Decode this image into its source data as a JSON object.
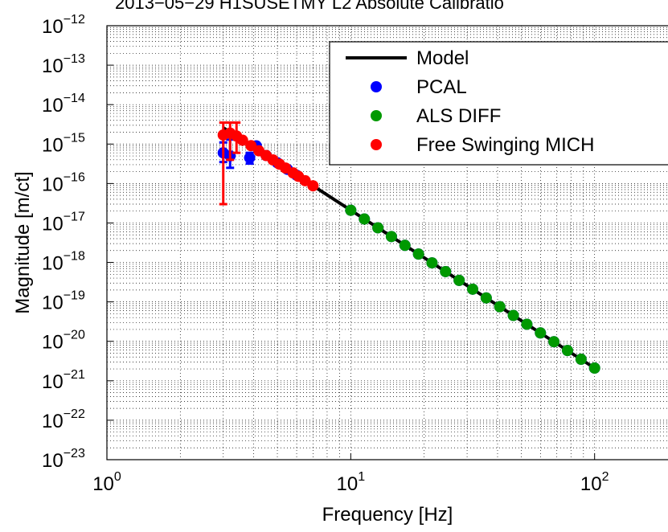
{
  "chart_data": {
    "type": "loglog",
    "title": "2013−05−29 H1SUSETMY L2 Absolute Calibratio",
    "x_label": "Frequency [Hz]",
    "y_label": "Magnitude [m/ct]",
    "xlim": [
      1,
      200
    ],
    "ylim": [
      1e-23,
      1e-12
    ],
    "xscale": "log",
    "yscale": "log",
    "xticks": [
      {
        "value": 1,
        "label": "10^0"
      },
      {
        "value": 10,
        "label": "10^1"
      },
      {
        "value": 100,
        "label": "10^2"
      }
    ],
    "yticks": [
      {
        "value": 1e-23,
        "label": "10^−23"
      },
      {
        "value": 1e-22,
        "label": "10^−22"
      },
      {
        "value": 1e-21,
        "label": "10^−21"
      },
      {
        "value": 1e-20,
        "label": "10^−20"
      },
      {
        "value": 1e-19,
        "label": "10^−19"
      },
      {
        "value": 1e-18,
        "label": "10^−18"
      },
      {
        "value": 1e-17,
        "label": "10^−17"
      },
      {
        "value": 1e-16,
        "label": "10^−16"
      },
      {
        "value": 1e-15,
        "label": "10^−15"
      },
      {
        "value": 1e-14,
        "label": "10^−14"
      },
      {
        "value": 1e-13,
        "label": "10^−13"
      },
      {
        "value": 1e-12,
        "label": "10^−12"
      }
    ],
    "grid": true,
    "minor_grid": true,
    "legend": "northeast",
    "series": [
      {
        "name": "Model",
        "color": "#000000",
        "style": "line",
        "x": [
          3,
          100
        ],
        "values": [
          2.6e-15,
          2.1e-21
        ]
      },
      {
        "name": "PCAL",
        "color": "#0000ff",
        "style": "marker",
        "x": [
          3.0,
          3.2,
          3.85,
          4.1,
          4.5,
          5,
          5.5,
          6,
          10,
          11.37,
          12.92,
          14.68,
          16.68,
          18.96,
          21.54,
          24.48,
          27.83,
          31.62,
          35.94,
          40.84,
          46.42,
          52.75,
          59.95,
          68.13,
          77.43,
          88.0,
          100
        ],
        "values": [
          6e-16,
          5e-16,
          4.5e-16,
          9e-16,
          5.12e-16,
          3.36e-16,
          2.29e-16,
          1.62e-16,
          2.1e-17,
          1.26e-17,
          7.55e-18,
          4.53e-18,
          2.71e-18,
          1.63e-18,
          9.75e-19,
          5.85e-19,
          3.51e-19,
          2.1e-19,
          1.26e-19,
          7.55e-20,
          4.53e-20,
          2.71e-20,
          1.63e-20,
          9.75e-21,
          5.85e-21,
          3.51e-21,
          2.1e-21
        ],
        "lower": [
          3.5e-16,
          2.5e-16,
          3.2e-16,
          null,
          null,
          null,
          null,
          null,
          null,
          null,
          null,
          null,
          null,
          null,
          null,
          null,
          null,
          null,
          null,
          null,
          null,
          null,
          null,
          null,
          null,
          null,
          null
        ],
        "upper": [
          1.1e-15,
          1.3e-15,
          6e-16,
          null,
          null,
          null,
          null,
          null,
          null,
          null,
          null,
          null,
          null,
          null,
          null,
          null,
          null,
          null,
          null,
          null,
          null,
          null,
          null,
          null,
          null,
          null,
          null
        ]
      },
      {
        "name": "ALS DIFF",
        "color": "#009900",
        "style": "marker",
        "x": [
          10,
          11.37,
          12.92,
          14.68,
          16.68,
          18.96,
          21.54,
          24.48,
          27.83,
          31.62,
          35.94,
          40.84,
          46.42,
          52.75,
          59.95,
          68.13,
          77.43,
          88.0,
          100
        ],
        "values": [
          2.1e-17,
          1.26e-17,
          7.55e-18,
          4.53e-18,
          2.71e-18,
          1.63e-18,
          9.75e-19,
          5.85e-19,
          3.51e-19,
          2.1e-19,
          1.26e-19,
          7.55e-20,
          4.53e-20,
          2.71e-20,
          1.63e-20,
          9.75e-21,
          5.85e-21,
          3.51e-21,
          2.1e-21
        ]
      },
      {
        "name": "Free Swinging MICH",
        "color": "#ff0000",
        "style": "marker",
        "x": [
          3.0,
          3.2,
          3.4,
          3.6,
          3.9,
          4.2,
          4.5,
          4.8,
          5.1,
          5.4,
          5.8,
          6.1,
          6.5,
          7.0
        ],
        "values": [
          1.7e-15,
          1.9e-15,
          1.6e-15,
          1.25e-15,
          9.1e-16,
          6.75e-16,
          5.12e-16,
          3.96e-16,
          3.1e-16,
          2.47e-16,
          1.86e-16,
          1.52e-16,
          1.18e-16,
          8.75e-17
        ],
        "lower": [
          3e-17,
          4e-16,
          6e-16,
          null,
          null,
          null,
          null,
          null,
          null,
          null,
          null,
          null,
          null,
          null
        ],
        "upper": [
          3.5e-15,
          3.5e-15,
          3.5e-15,
          null,
          null,
          null,
          null,
          null,
          null,
          null,
          null,
          null,
          null,
          null
        ]
      }
    ]
  }
}
